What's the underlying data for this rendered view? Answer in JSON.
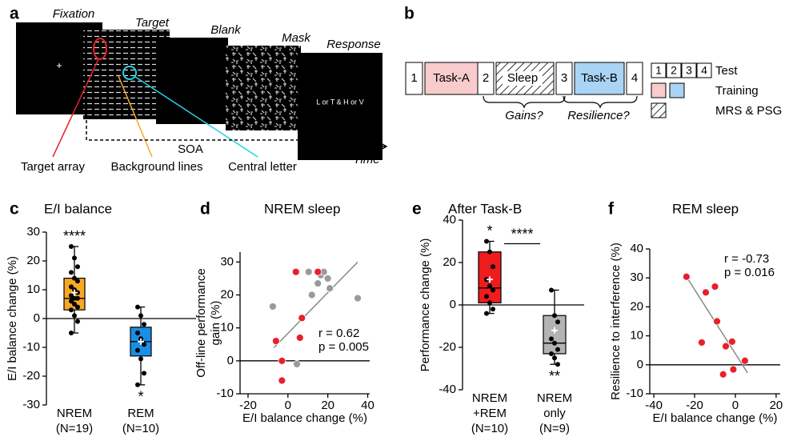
{
  "panel_a": {
    "letter": "a",
    "frames": [
      {
        "label": "Fixation"
      },
      {
        "label": "Target"
      },
      {
        "label": "Blank"
      },
      {
        "label": "Mask"
      },
      {
        "label": "Response"
      }
    ],
    "response_text": "L or T & H or V",
    "callouts": [
      "Target array",
      "Background lines",
      "Central letter"
    ],
    "soa": "SOA",
    "time": "Time"
  },
  "panel_b": {
    "letter": "b",
    "sequence": [
      "1",
      "Task-A",
      "2",
      "Sleep",
      "3",
      "Task-B",
      "4"
    ],
    "braces": [
      "Gains?",
      "Resilience?"
    ],
    "legend": {
      "tests": [
        "1",
        "2",
        "3",
        "4"
      ],
      "labels": [
        "Test",
        "Training",
        "MRS & PSG"
      ]
    }
  },
  "chart_data": [
    {
      "type": "box",
      "panel": "c",
      "title": "E/I balance",
      "ylabel": "E/I balance change (%)",
      "categories": [
        [
          "NREM",
          "(N=19)"
        ],
        [
          "REM",
          "(N=10)"
        ]
      ],
      "ylim": [
        -30,
        30
      ],
      "yticks": [
        -30,
        -20,
        -10,
        0,
        10,
        20,
        30
      ],
      "zero_line": true,
      "boxes": [
        {
          "color": "#f7a823",
          "min": -5,
          "q1": 3,
          "median": 7,
          "q3": 14,
          "max": 25,
          "mean": 9,
          "points": [
            25,
            21,
            18,
            16,
            14,
            13,
            11,
            10,
            9,
            8,
            7,
            7,
            6,
            5,
            4,
            3,
            1,
            -1,
            -5
          ],
          "annotation": "****",
          "annotation_side": "above"
        },
        {
          "color": "#1a8fe3",
          "min": -23,
          "q1": -13,
          "median": -8,
          "q3": -3,
          "max": 4,
          "mean": -8,
          "points": [
            4,
            1,
            -2,
            -5,
            -7,
            -9,
            -11,
            -14,
            -19,
            -23
          ],
          "annotation": "*",
          "annotation_side": "below"
        }
      ]
    },
    {
      "type": "scatter",
      "panel": "d",
      "title": "NREM sleep",
      "ylabel": [
        "Off-line performance",
        "gain (%)"
      ],
      "xlabel": "E/I balance change (%)",
      "xlim": [
        -24,
        41
      ],
      "xticks": [
        -20,
        0,
        20,
        40
      ],
      "ylim": [
        -10,
        33
      ],
      "yticks": [
        -10,
        0,
        10,
        20,
        30
      ],
      "zero_line": true,
      "fit": {
        "color": "#888888",
        "x": [
          -7,
          35
        ],
        "y": [
          4,
          30
        ]
      },
      "series": [
        {
          "color": "#9a9a9a",
          "x": [
            -7.6,
            4.5,
            10.4,
            12,
            15,
            16.5,
            18,
            20,
            21,
            35
          ],
          "y": [
            16.5,
            -1,
            27,
            20,
            23.5,
            26,
            27,
            25,
            22,
            19
          ]
        },
        {
          "color": "#e8202a",
          "x": [
            -6,
            -3,
            -3,
            4,
            6,
            7,
            15
          ],
          "y": [
            6,
            0,
            -6,
            27,
            7,
            13,
            27
          ]
        }
      ],
      "stats": [
        "r = 0.62",
        "p = 0.005"
      ]
    },
    {
      "type": "box",
      "panel": "e",
      "title": "After Task-B",
      "ylabel": "Performance change (%)",
      "categories": [
        [
          "NREM",
          "+REM",
          "(N=10)"
        ],
        [
          "NREM",
          "only",
          "(N=9)"
        ]
      ],
      "ylim": [
        -40,
        40
      ],
      "yticks": [
        -40,
        -20,
        0,
        20,
        40
      ],
      "zero_line": true,
      "comparison": "****",
      "boxes": [
        {
          "color": "#ee1c1c",
          "min": -4,
          "q1": 1,
          "median": 8,
          "q3": 25,
          "max": 30,
          "mean": 12,
          "points": [
            30,
            25,
            18,
            12,
            9,
            7,
            4,
            1,
            -2,
            -4
          ],
          "annotation": "*",
          "annotation_side": "above"
        },
        {
          "color": "#b3b3b3",
          "min": -28,
          "q1": -23,
          "median": -18,
          "q3": -5,
          "max": 7,
          "mean": -12,
          "points": [
            7,
            -5,
            -8,
            -16,
            -18,
            -21,
            -23,
            -25,
            -28
          ],
          "annotation": "**",
          "annotation_side": "below"
        }
      ]
    },
    {
      "type": "scatter",
      "panel": "f",
      "title": "REM sleep",
      "ylabel": "Resilience to interference (%)",
      "xlabel": "E/I balance change (%)",
      "xlim": [
        -42,
        22
      ],
      "xticks": [
        -40,
        -20,
        0,
        20
      ],
      "ylim": [
        -10,
        40
      ],
      "yticks": [
        -10,
        0,
        10,
        20,
        30,
        40
      ],
      "zero_line": true,
      "fit": {
        "color": "#888888",
        "x": [
          -24,
          6
        ],
        "y": [
          30.4,
          -2.8
        ]
      },
      "series": [
        {
          "color": "#e8202a",
          "x": [
            -24,
            -14.5,
            -10,
            -9,
            -16.5,
            -4.7,
            -1.6,
            -1,
            4.7,
            -6
          ],
          "y": [
            30.4,
            25,
            27,
            15,
            7.7,
            6.4,
            8,
            -1.6,
            1.4,
            -3.3
          ]
        }
      ],
      "stats": [
        "r = -0.73",
        "p = 0.016"
      ]
    }
  ]
}
